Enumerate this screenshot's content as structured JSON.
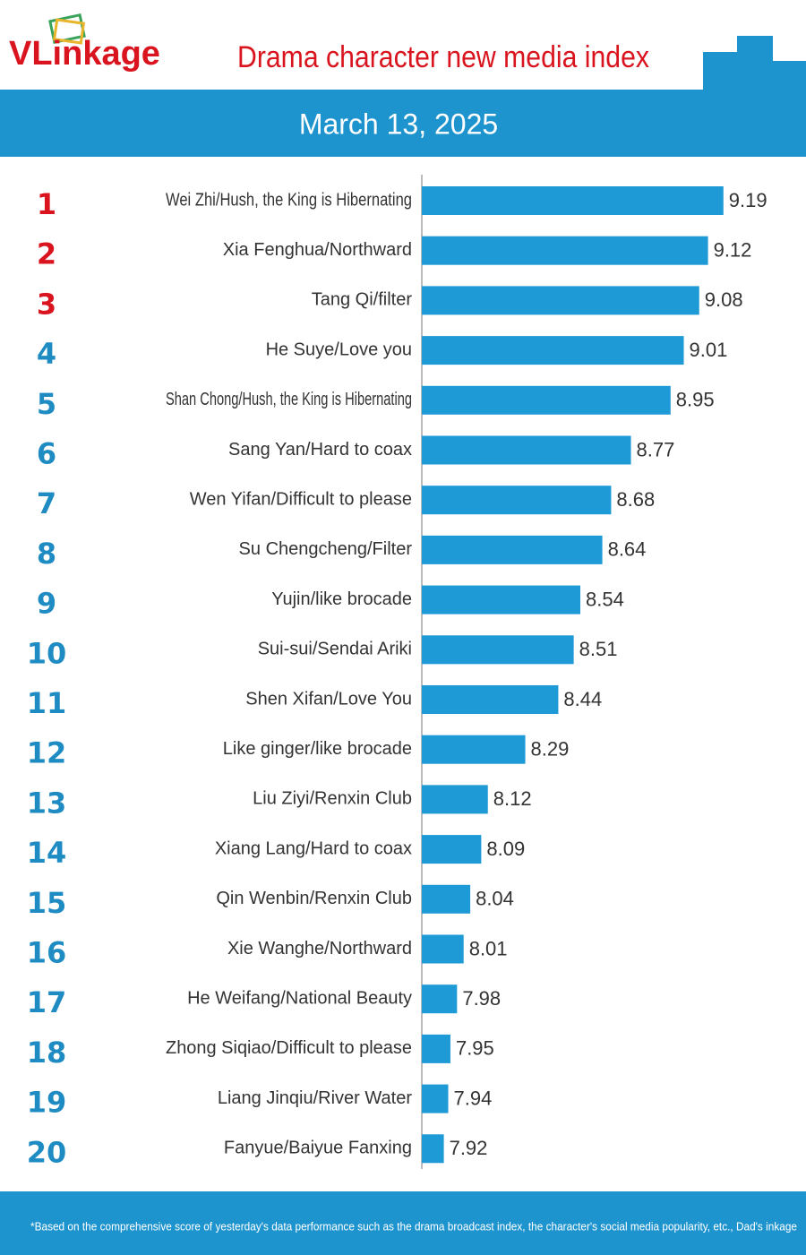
{
  "chart_data": {
    "type": "bar",
    "orientation": "horizontal",
    "logo": "VLinkage",
    "title": "Drama character new media index",
    "subtitle": "March 13, 2025",
    "footnote": "*Based on the comprehensive score of yesterday's data performance such as the drama broadcast index, the character's social media popularity, etc., Dad's inkage",
    "ranks": [
      1,
      2,
      3,
      4,
      5,
      6,
      7,
      8,
      9,
      10,
      11,
      12,
      13,
      14,
      15,
      16,
      17,
      18,
      19,
      20
    ],
    "categories": [
      "Wei Zhi/Hush, the King is Hibernating",
      "Xia Fenghua/Northward",
      "Tang Qi/filter",
      "He Suye/Love you",
      "Shan Chong/Hush, the King is Hibernating",
      "Sang Yan/Hard to coax",
      "Wen Yifan/Difficult to please",
      "Su Chengcheng/Filter",
      "Yujin/like brocade",
      "Sui-sui/Sendai Ariki",
      "Shen Xifan/Love You",
      "Like ginger/like brocade",
      "Liu Ziyi/Renxin Club",
      "Xiang Lang/Hard to coax",
      "Qin Wenbin/Renxin Club",
      "Xie Wanghe/Northward",
      "He Weifang/National Beauty",
      "Zhong Siqiao/Difficult to please",
      "Liang Jinqiu/River Water",
      "Fanyue/Baiyue Fanxing"
    ],
    "values": [
      9.19,
      9.12,
      9.08,
      9.01,
      8.95,
      8.77,
      8.68,
      8.64,
      8.54,
      8.51,
      8.44,
      8.29,
      8.12,
      8.09,
      8.04,
      8.01,
      7.98,
      7.95,
      7.94,
      7.92
    ],
    "xlim": [
      7.82,
      9.5
    ],
    "color": "#1e9ad6",
    "top_rank_color": "#d9141e",
    "rank_color": "#1f8bc3",
    "top_ranks": 3
  }
}
